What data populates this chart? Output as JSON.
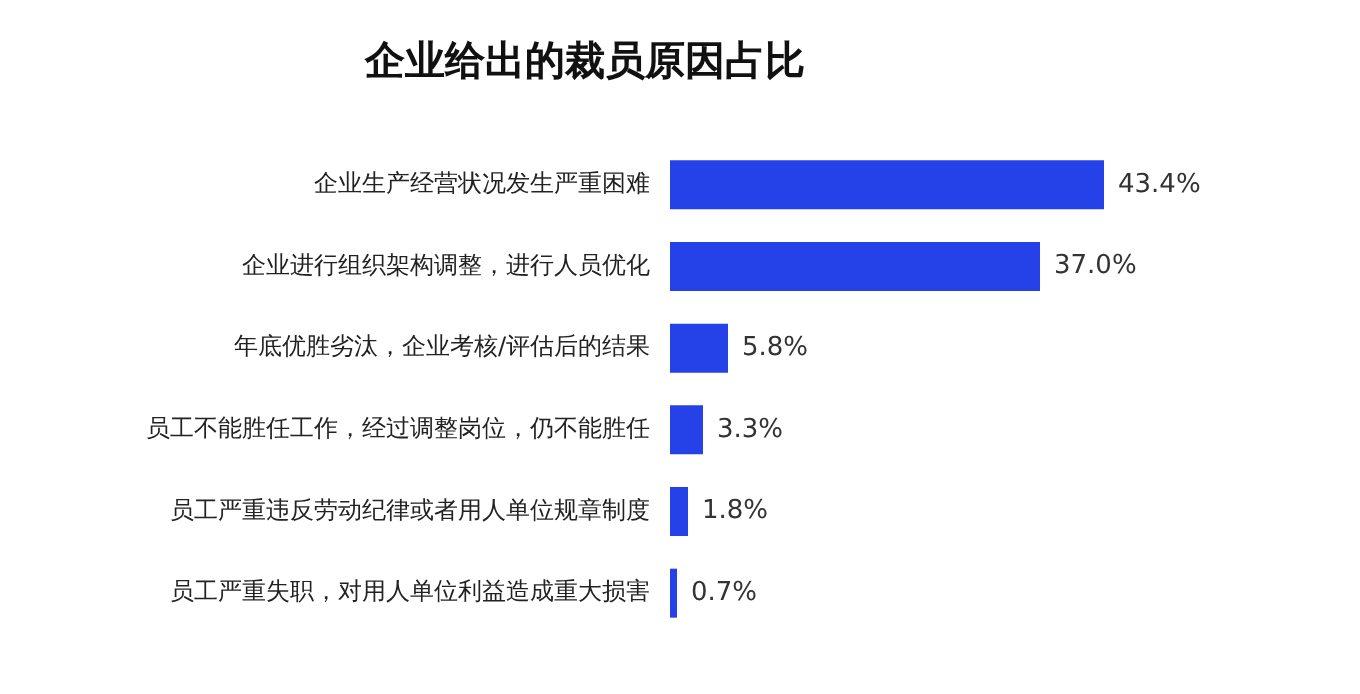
{
  "chart_data": {
    "type": "bar",
    "orientation": "horizontal",
    "title": "企业给出的裁员原因占比",
    "categories": [
      "企业生产经营状况发生严重困难",
      "企业进行组织架构调整，进行人员优化",
      "年底优胜劣汰，企业考核/评估后的结果",
      "员工不能胜任工作，经过调整岗位，仍不能胜任",
      "员工严重违反劳动纪律或者用人单位规章制度",
      "员工严重失职，对用人单位利益造成重大损害"
    ],
    "values": [
      43.4,
      37.0,
      5.8,
      3.3,
      1.8,
      0.7
    ],
    "value_labels": [
      "43.4%",
      "37.0%",
      "5.8%",
      "3.3%",
      "1.8%",
      "0.7%"
    ],
    "color": "#2541e8",
    "tick_labels": "y",
    "legend": false
  }
}
